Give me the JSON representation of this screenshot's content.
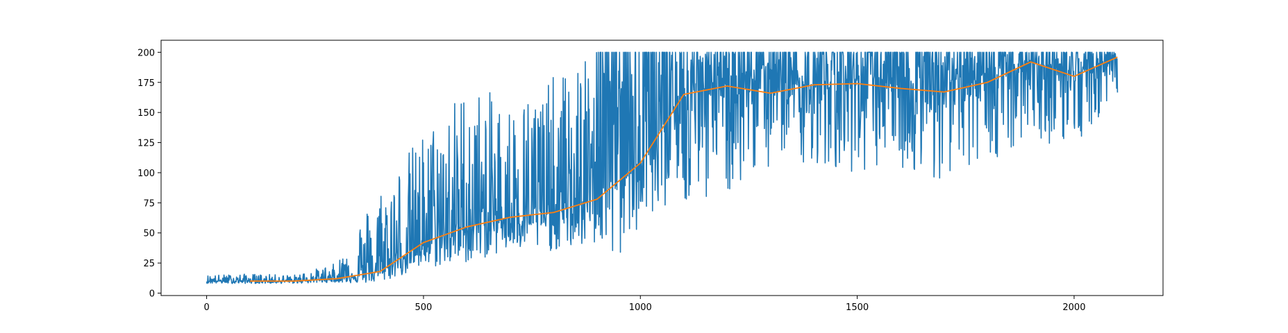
{
  "chart_data": {
    "type": "line",
    "title": "",
    "xlabel": "",
    "ylabel": "",
    "xlim": [
      -105,
      2205
    ],
    "ylim": [
      -2,
      210
    ],
    "grid": false,
    "legend": "none",
    "x_ticks": [
      0,
      500,
      1000,
      1500,
      2000
    ],
    "y_ticks": [
      0,
      25,
      50,
      75,
      100,
      125,
      150,
      175,
      200
    ],
    "x_tick_labels": [
      "0",
      "500",
      "1000",
      "1500",
      "2000"
    ],
    "y_tick_labels": [
      "0",
      "25",
      "50",
      "75",
      "100",
      "125",
      "150",
      "175",
      "200"
    ],
    "series": [
      {
        "color": "#1f77b4",
        "style": "raw-noisy",
        "x_start": 0,
        "x_end": 2100,
        "points": 2101,
        "envelope_x": [
          0,
          100,
          200,
          300,
          350,
          400,
          500,
          600,
          700,
          800,
          900,
          950,
          1000,
          1100,
          1200,
          1300,
          1400,
          1500,
          1600,
          1700,
          1800,
          1900,
          2000,
          2100
        ],
        "envelope_min": [
          8,
          8,
          8,
          9,
          8,
          9,
          20,
          25,
          35,
          35,
          40,
          20,
          60,
          75,
          80,
          100,
          105,
          100,
          100,
          95,
          110,
          120,
          120,
          165
        ],
        "envelope_max": [
          15,
          16,
          15,
          25,
          60,
          90,
          135,
          175,
          160,
          180,
          200,
          200,
          200,
          200,
          200,
          200,
          200,
          200,
          200,
          200,
          200,
          200,
          200,
          200
        ]
      },
      {
        "color": "#ff7f0e",
        "style": "moving-average",
        "x": [
          100,
          200,
          300,
          400,
          500,
          600,
          700,
          800,
          900,
          1000,
          1100,
          1200,
          1300,
          1400,
          1500,
          1600,
          1700,
          1800,
          1900,
          2000,
          2100
        ],
        "y": [
          10,
          10,
          12,
          18,
          42,
          55,
          63,
          67,
          78,
          108,
          165,
          172,
          166,
          173,
          174,
          170,
          167,
          175,
          192,
          180,
          196
        ]
      }
    ]
  }
}
